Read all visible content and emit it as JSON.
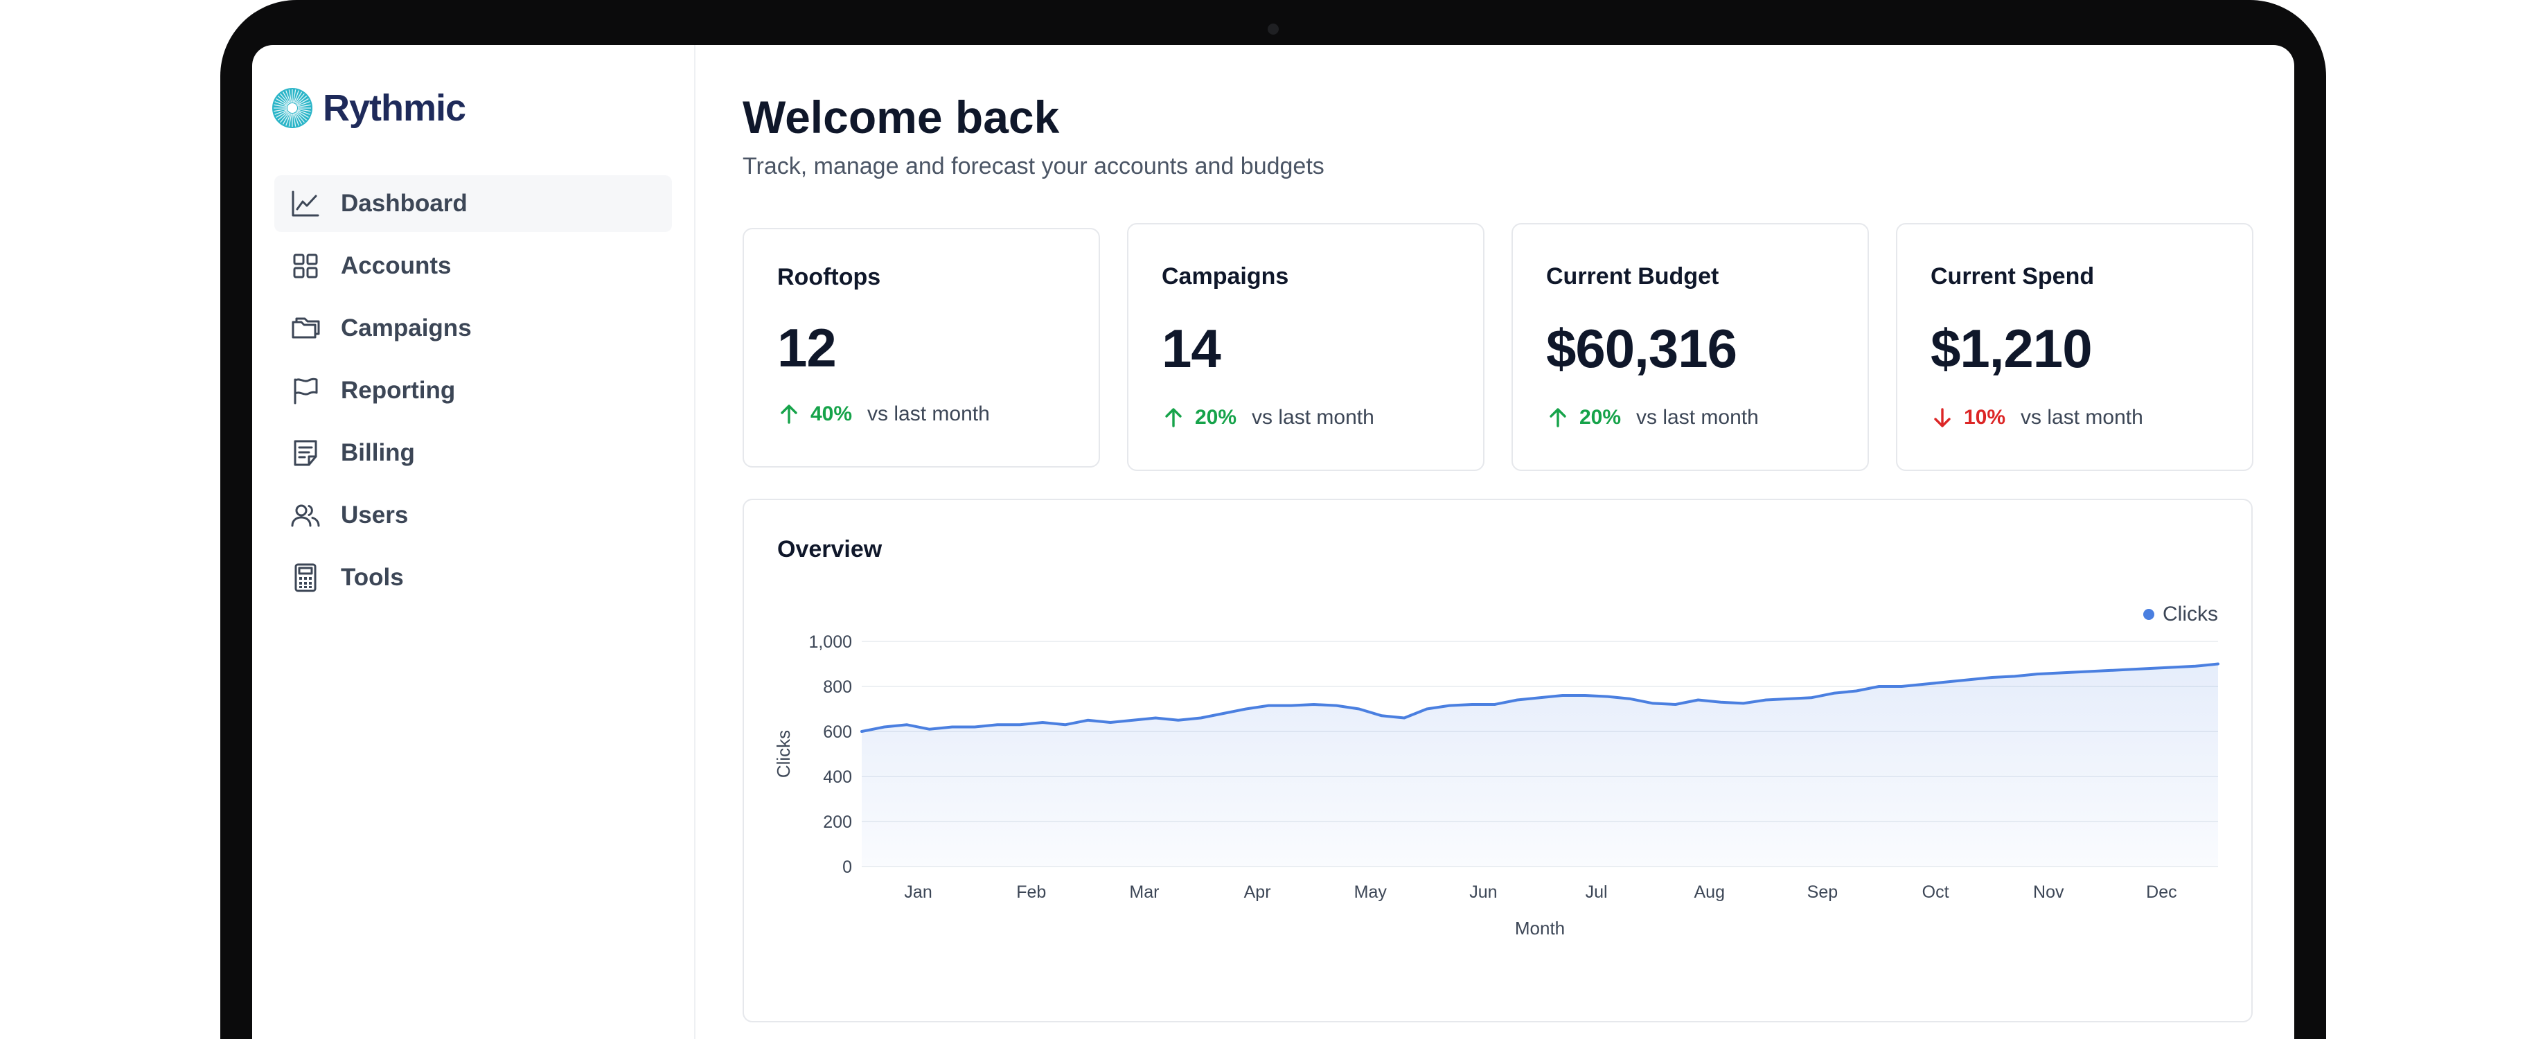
{
  "app": {
    "name": "Rythmic"
  },
  "sidebar": {
    "items": [
      {
        "label": "Dashboard",
        "icon": "line-chart-icon",
        "active": true
      },
      {
        "label": "Accounts",
        "icon": "grid-icon"
      },
      {
        "label": "Campaigns",
        "icon": "folders-icon"
      },
      {
        "label": "Reporting",
        "icon": "flag-icon"
      },
      {
        "label": "Billing",
        "icon": "receipt-icon"
      },
      {
        "label": "Users",
        "icon": "users-icon"
      },
      {
        "label": "Tools",
        "icon": "calculator-icon"
      }
    ]
  },
  "header": {
    "title": "Welcome back",
    "subtitle": "Track, manage and forecast your accounts and budgets"
  },
  "stats": [
    {
      "title": "Rooftops",
      "value": "12",
      "delta": "40%",
      "direction": "up",
      "compare": "vs last month"
    },
    {
      "title": "Campaigns",
      "value": "14",
      "delta": "20%",
      "direction": "up",
      "compare": "vs last month"
    },
    {
      "title": "Current Budget",
      "value": "$60,316",
      "delta": "20%",
      "direction": "up",
      "compare": "vs last month"
    },
    {
      "title": "Current Spend",
      "value": "$1,210",
      "delta": "10%",
      "direction": "down",
      "compare": "vs last month"
    }
  ],
  "colors": {
    "up": "#16a34a",
    "down": "#dc2626",
    "series": "#4a7fe0",
    "brand": "#1e2a5a",
    "brand_accent": "#2bb5c8"
  },
  "overview": {
    "title": "Overview",
    "chart_data": {
      "type": "area",
      "title": "",
      "xlabel": "Month",
      "ylabel": "Clicks",
      "ylim": [
        0,
        1000
      ],
      "y_ticks": [
        0,
        200,
        400,
        600,
        800,
        1000
      ],
      "y_tick_labels": [
        "0",
        "200",
        "400",
        "600",
        "800",
        "1,000"
      ],
      "categories": [
        "Jan",
        "Feb",
        "Mar",
        "Apr",
        "May",
        "Jun",
        "Jul",
        "Aug",
        "Sep",
        "Oct",
        "Nov",
        "Dec"
      ],
      "grid": true,
      "legend": "top-right",
      "series": [
        {
          "name": "Clicks",
          "x": [
            0.0,
            0.2,
            0.4,
            0.6,
            0.8,
            1.0,
            1.2,
            1.4,
            1.6,
            1.8,
            2.0,
            2.2,
            2.4,
            2.6,
            2.8,
            3.0,
            3.2,
            3.4,
            3.6,
            3.8,
            4.0,
            4.2,
            4.4,
            4.6,
            4.8,
            5.0,
            5.2,
            5.4,
            5.6,
            5.8,
            6.0,
            6.2,
            6.4,
            6.6,
            6.8,
            7.0,
            7.2,
            7.4,
            7.6,
            7.8,
            8.0,
            8.2,
            8.4,
            8.6,
            8.8,
            9.0,
            9.2,
            9.4,
            9.6,
            9.8,
            10.0,
            10.2,
            10.4,
            10.6,
            10.8,
            11.0,
            11.2,
            11.4,
            11.6,
            11.8,
            12.0
          ],
          "values": [
            600,
            620,
            630,
            610,
            620,
            620,
            630,
            630,
            640,
            630,
            650,
            640,
            650,
            660,
            650,
            660,
            680,
            700,
            715,
            715,
            720,
            715,
            700,
            670,
            660,
            700,
            715,
            720,
            720,
            740,
            750,
            760,
            760,
            755,
            745,
            725,
            720,
            740,
            730,
            725,
            740,
            745,
            750,
            770,
            780,
            800,
            800,
            810,
            820,
            830,
            840,
            845,
            855,
            860,
            865,
            870,
            875,
            880,
            885,
            890,
            900
          ]
        }
      ]
    }
  }
}
